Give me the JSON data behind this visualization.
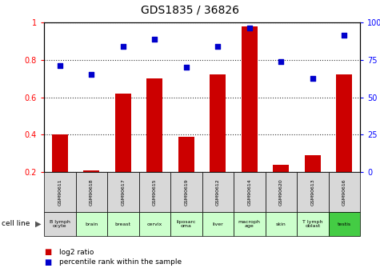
{
  "title": "GDS1835 / 36826",
  "samples": [
    "GSM90611",
    "GSM90618",
    "GSM90617",
    "GSM90615",
    "GSM90619",
    "GSM90612",
    "GSM90614",
    "GSM90620",
    "GSM90613",
    "GSM90616"
  ],
  "cell_lines": [
    "B lymph\nocyte",
    "brain",
    "breast",
    "cervix",
    "liposarc\noma",
    "liver",
    "macroph\nage",
    "skin",
    "T lymph\noblast",
    "testis"
  ],
  "cell_line_bg": [
    "#d8d8d8",
    "#ccffcc",
    "#ccffcc",
    "#ccffcc",
    "#ccffcc",
    "#ccffcc",
    "#ccffcc",
    "#ccffcc",
    "#ccffcc",
    "#44cc44"
  ],
  "log2_ratio": [
    0.4,
    0.21,
    0.62,
    0.7,
    0.39,
    0.72,
    0.98,
    0.24,
    0.29,
    0.72
  ],
  "percentile_rank": [
    0.77,
    0.72,
    0.87,
    0.91,
    0.76,
    0.87,
    0.97,
    0.79,
    0.7,
    0.93
  ],
  "bar_color": "#cc0000",
  "dot_color": "#0000cc",
  "ylim_left": [
    0.2,
    1.0
  ],
  "yticks_left": [
    0.2,
    0.4,
    0.6,
    0.8,
    1.0
  ],
  "ytick_labels_left": [
    "0.2",
    "0.4",
    "0.6",
    "0.8",
    "1"
  ],
  "yticks_right": [
    0,
    25,
    50,
    75,
    100
  ],
  "ytick_labels_right": [
    "0",
    "25",
    "50",
    "75",
    "100%"
  ],
  "background_color": "#ffffff",
  "gsm_label_bg": "#d8d8d8"
}
